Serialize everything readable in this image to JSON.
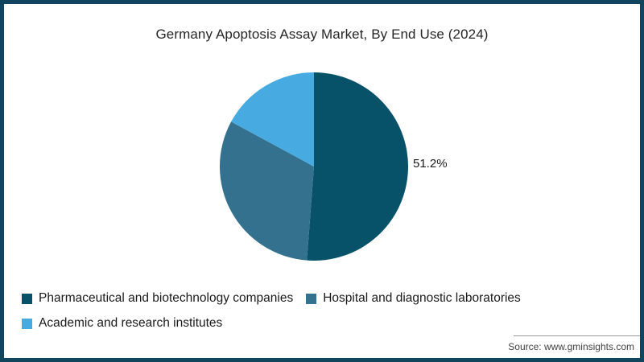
{
  "frame": {
    "border_color": "#11455E",
    "background_color": "#FFFFFF"
  },
  "title": "Germany Apoptosis Assay Market, By End Use (2024)",
  "source": "Source: www.gminsights.com",
  "chart_data": {
    "type": "pie",
    "title": "Germany Apoptosis Assay Market, By End Use (2024)",
    "direction": "clockwise",
    "start_angle_deg": 0,
    "legend_position": "bottom-left",
    "segments": [
      {
        "label": "Pharmaceutical and biotechnology companies",
        "value": 51.2,
        "color": "#075169",
        "data_label": "51.2%"
      },
      {
        "label": "Hospital and diagnostic laboratories",
        "value": 31.7,
        "color": "#34718F",
        "data_label": ""
      },
      {
        "label": "Academic and research institutes",
        "value": 17.1,
        "color": "#47ABE1",
        "data_label": ""
      }
    ]
  }
}
